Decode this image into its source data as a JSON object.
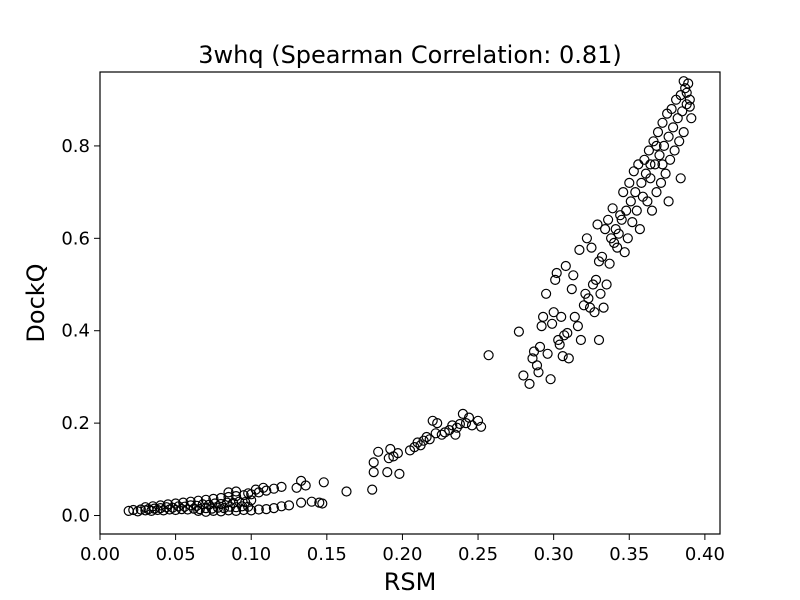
{
  "chart_data": {
    "type": "scatter",
    "title": "3whq (Spearman Correlation: 0.81)",
    "xlabel": "RSM",
    "ylabel": "DockQ",
    "xlim": [
      0.0,
      0.41
    ],
    "ylim": [
      -0.04,
      0.96
    ],
    "xticks": [
      0.0,
      0.05,
      0.1,
      0.15,
      0.2,
      0.25,
      0.3,
      0.35,
      0.4
    ],
    "xtick_labels": [
      "0.00",
      "0.05",
      "0.10",
      "0.15",
      "0.20",
      "0.25",
      "0.30",
      "0.35",
      "0.40"
    ],
    "yticks": [
      0.0,
      0.2,
      0.4,
      0.6,
      0.8
    ],
    "ytick_labels": [
      "0.0",
      "0.2",
      "0.4",
      "0.6",
      "0.8"
    ],
    "grid": false,
    "marker": "hollow-circle",
    "marker_color": "#000000",
    "series": [
      {
        "points": [
          [
            0.019,
            0.01
          ],
          [
            0.022,
            0.012
          ],
          [
            0.025,
            0.009
          ],
          [
            0.027,
            0.013
          ],
          [
            0.03,
            0.011
          ],
          [
            0.032,
            0.014
          ],
          [
            0.034,
            0.01
          ],
          [
            0.036,
            0.015
          ],
          [
            0.038,
            0.012
          ],
          [
            0.04,
            0.016
          ],
          [
            0.042,
            0.011
          ],
          [
            0.044,
            0.018
          ],
          [
            0.046,
            0.013
          ],
          [
            0.048,
            0.017
          ],
          [
            0.05,
            0.012
          ],
          [
            0.052,
            0.02
          ],
          [
            0.054,
            0.014
          ],
          [
            0.056,
            0.019
          ],
          [
            0.058,
            0.013
          ],
          [
            0.06,
            0.022
          ],
          [
            0.062,
            0.015
          ],
          [
            0.064,
            0.021
          ],
          [
            0.066,
            0.014
          ],
          [
            0.068,
            0.024
          ],
          [
            0.07,
            0.016
          ],
          [
            0.072,
            0.023
          ],
          [
            0.074,
            0.015
          ],
          [
            0.076,
            0.026
          ],
          [
            0.078,
            0.017
          ],
          [
            0.08,
            0.025
          ],
          [
            0.082,
            0.016
          ],
          [
            0.084,
            0.028
          ],
          [
            0.086,
            0.019
          ],
          [
            0.088,
            0.027
          ],
          [
            0.09,
            0.018
          ],
          [
            0.092,
            0.03
          ],
          [
            0.094,
            0.02
          ],
          [
            0.096,
            0.029
          ],
          [
            0.098,
            0.019
          ],
          [
            0.1,
            0.033
          ],
          [
            0.03,
            0.018
          ],
          [
            0.035,
            0.02
          ],
          [
            0.04,
            0.022
          ],
          [
            0.045,
            0.024
          ],
          [
            0.05,
            0.026
          ],
          [
            0.055,
            0.028
          ],
          [
            0.06,
            0.03
          ],
          [
            0.065,
            0.032
          ],
          [
            0.07,
            0.034
          ],
          [
            0.075,
            0.036
          ],
          [
            0.08,
            0.038
          ],
          [
            0.085,
            0.04
          ],
          [
            0.09,
            0.042
          ],
          [
            0.095,
            0.044
          ],
          [
            0.1,
            0.046
          ],
          [
            0.105,
            0.05
          ],
          [
            0.11,
            0.054
          ],
          [
            0.115,
            0.058
          ],
          [
            0.12,
            0.062
          ],
          [
            0.085,
            0.05
          ],
          [
            0.09,
            0.052
          ],
          [
            0.098,
            0.048
          ],
          [
            0.103,
            0.056
          ],
          [
            0.108,
            0.06
          ],
          [
            0.065,
            0.01
          ],
          [
            0.07,
            0.008
          ],
          [
            0.075,
            0.01
          ],
          [
            0.08,
            0.009
          ],
          [
            0.085,
            0.011
          ],
          [
            0.09,
            0.01
          ],
          [
            0.095,
            0.012
          ],
          [
            0.1,
            0.011
          ],
          [
            0.105,
            0.013
          ],
          [
            0.11,
            0.014
          ],
          [
            0.115,
            0.016
          ],
          [
            0.12,
            0.02
          ],
          [
            0.125,
            0.022
          ],
          [
            0.13,
            0.06
          ],
          [
            0.133,
            0.075
          ],
          [
            0.136,
            0.065
          ],
          [
            0.133,
            0.028
          ],
          [
            0.14,
            0.03
          ],
          [
            0.145,
            0.028
          ],
          [
            0.148,
            0.072
          ],
          [
            0.147,
            0.026
          ],
          [
            0.163,
            0.052
          ],
          [
            0.18,
            0.056
          ],
          [
            0.181,
            0.094
          ],
          [
            0.181,
            0.115
          ],
          [
            0.184,
            0.138
          ],
          [
            0.19,
            0.094
          ],
          [
            0.191,
            0.124
          ],
          [
            0.192,
            0.144
          ],
          [
            0.194,
            0.128
          ],
          [
            0.197,
            0.135
          ],
          [
            0.198,
            0.09
          ],
          [
            0.205,
            0.141
          ],
          [
            0.208,
            0.148
          ],
          [
            0.21,
            0.158
          ],
          [
            0.212,
            0.152
          ],
          [
            0.214,
            0.162
          ],
          [
            0.216,
            0.17
          ],
          [
            0.218,
            0.165
          ],
          [
            0.22,
            0.205
          ],
          [
            0.222,
            0.178
          ],
          [
            0.223,
            0.2
          ],
          [
            0.226,
            0.175
          ],
          [
            0.228,
            0.18
          ],
          [
            0.231,
            0.185
          ],
          [
            0.233,
            0.195
          ],
          [
            0.235,
            0.175
          ],
          [
            0.236,
            0.19
          ],
          [
            0.238,
            0.198
          ],
          [
            0.24,
            0.22
          ],
          [
            0.242,
            0.2
          ],
          [
            0.244,
            0.212
          ],
          [
            0.246,
            0.195
          ],
          [
            0.25,
            0.205
          ],
          [
            0.252,
            0.192
          ],
          [
            0.257,
            0.347
          ],
          [
            0.277,
            0.398
          ],
          [
            0.28,
            0.303
          ],
          [
            0.284,
            0.285
          ],
          [
            0.286,
            0.34
          ],
          [
            0.287,
            0.355
          ],
          [
            0.289,
            0.325
          ],
          [
            0.29,
            0.31
          ],
          [
            0.291,
            0.365
          ],
          [
            0.292,
            0.41
          ],
          [
            0.293,
            0.43
          ],
          [
            0.295,
            0.48
          ],
          [
            0.296,
            0.35
          ],
          [
            0.298,
            0.295
          ],
          [
            0.299,
            0.415
          ],
          [
            0.3,
            0.44
          ],
          [
            0.301,
            0.51
          ],
          [
            0.302,
            0.525
          ],
          [
            0.303,
            0.38
          ],
          [
            0.304,
            0.37
          ],
          [
            0.305,
            0.43
          ],
          [
            0.306,
            0.345
          ],
          [
            0.307,
            0.39
          ],
          [
            0.308,
            0.54
          ],
          [
            0.309,
            0.395
          ],
          [
            0.31,
            0.34
          ],
          [
            0.312,
            0.49
          ],
          [
            0.313,
            0.52
          ],
          [
            0.314,
            0.43
          ],
          [
            0.316,
            0.41
          ],
          [
            0.317,
            0.575
          ],
          [
            0.318,
            0.38
          ],
          [
            0.32,
            0.455
          ],
          [
            0.321,
            0.48
          ],
          [
            0.322,
            0.6
          ],
          [
            0.323,
            0.47
          ],
          [
            0.324,
            0.45
          ],
          [
            0.325,
            0.58
          ],
          [
            0.326,
            0.5
          ],
          [
            0.327,
            0.44
          ],
          [
            0.328,
            0.51
          ],
          [
            0.329,
            0.63
          ],
          [
            0.33,
            0.55
          ],
          [
            0.33,
            0.38
          ],
          [
            0.331,
            0.48
          ],
          [
            0.332,
            0.56
          ],
          [
            0.333,
            0.45
          ],
          [
            0.334,
            0.62
          ],
          [
            0.335,
            0.5
          ],
          [
            0.336,
            0.64
          ],
          [
            0.337,
            0.545
          ],
          [
            0.338,
            0.6
          ],
          [
            0.339,
            0.665
          ],
          [
            0.34,
            0.59
          ],
          [
            0.341,
            0.62
          ],
          [
            0.342,
            0.58
          ],
          [
            0.343,
            0.61
          ],
          [
            0.344,
            0.65
          ],
          [
            0.345,
            0.64
          ],
          [
            0.346,
            0.7
          ],
          [
            0.347,
            0.57
          ],
          [
            0.348,
            0.66
          ],
          [
            0.349,
            0.6
          ],
          [
            0.35,
            0.72
          ],
          [
            0.351,
            0.68
          ],
          [
            0.352,
            0.635
          ],
          [
            0.353,
            0.745
          ],
          [
            0.354,
            0.7
          ],
          [
            0.355,
            0.66
          ],
          [
            0.356,
            0.76
          ],
          [
            0.357,
            0.62
          ],
          [
            0.358,
            0.72
          ],
          [
            0.359,
            0.69
          ],
          [
            0.36,
            0.77
          ],
          [
            0.361,
            0.74
          ],
          [
            0.362,
            0.68
          ],
          [
            0.363,
            0.79
          ],
          [
            0.364,
            0.73
          ],
          [
            0.365,
            0.66
          ],
          [
            0.366,
            0.81
          ],
          [
            0.367,
            0.76
          ],
          [
            0.368,
            0.7
          ],
          [
            0.369,
            0.83
          ],
          [
            0.37,
            0.78
          ],
          [
            0.371,
            0.72
          ],
          [
            0.372,
            0.85
          ],
          [
            0.373,
            0.8
          ],
          [
            0.374,
            0.74
          ],
          [
            0.375,
            0.87
          ],
          [
            0.376,
            0.82
          ],
          [
            0.377,
            0.77
          ],
          [
            0.378,
            0.88
          ],
          [
            0.379,
            0.84
          ],
          [
            0.38,
            0.79
          ],
          [
            0.381,
            0.9
          ],
          [
            0.382,
            0.86
          ],
          [
            0.383,
            0.81
          ],
          [
            0.384,
            0.91
          ],
          [
            0.385,
            0.875
          ],
          [
            0.386,
            0.83
          ],
          [
            0.387,
            0.925
          ],
          [
            0.388,
            0.89
          ],
          [
            0.389,
            0.935
          ],
          [
            0.39,
            0.9
          ],
          [
            0.391,
            0.86
          ],
          [
            0.386,
            0.94
          ],
          [
            0.388,
            0.915
          ],
          [
            0.39,
            0.885
          ],
          [
            0.384,
            0.73
          ],
          [
            0.376,
            0.68
          ],
          [
            0.372,
            0.76
          ],
          [
            0.368,
            0.8
          ],
          [
            0.364,
            0.76
          ]
        ]
      }
    ]
  }
}
